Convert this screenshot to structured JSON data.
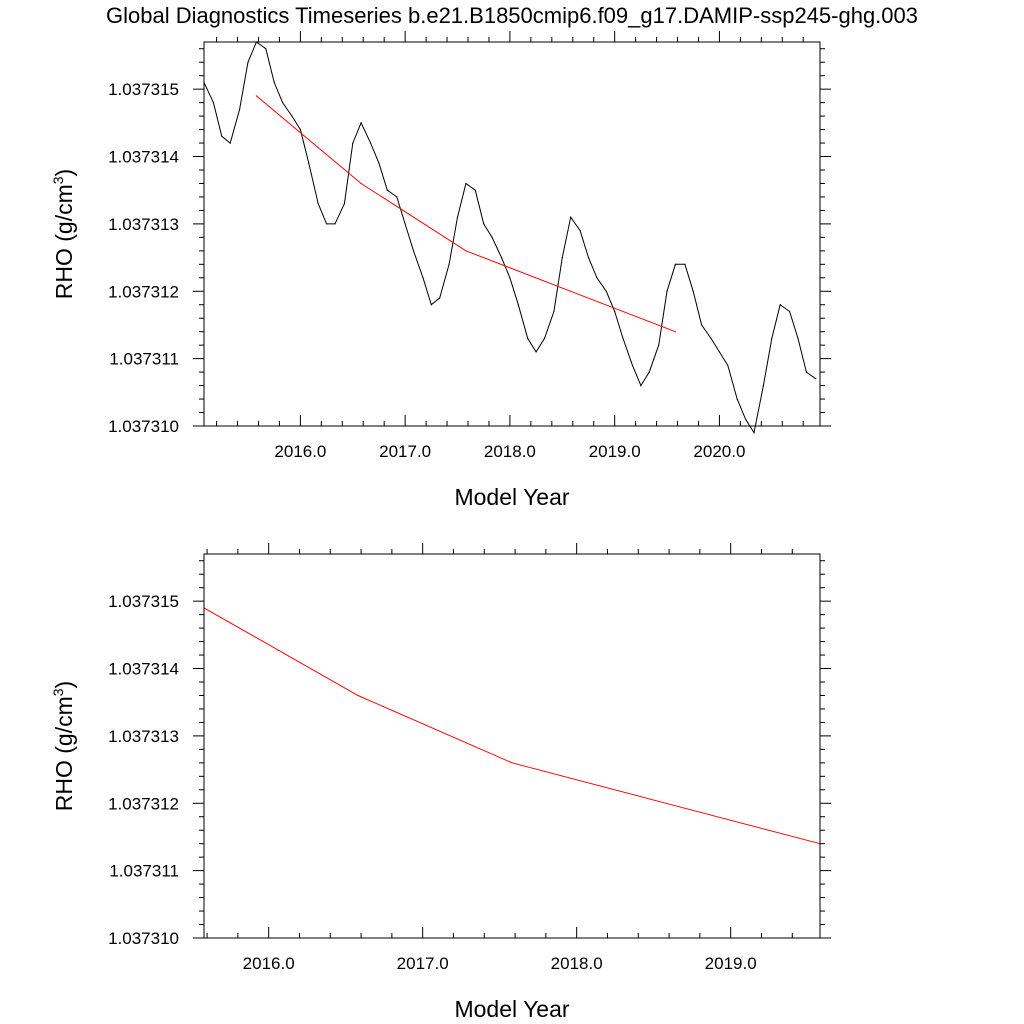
{
  "figure": {
    "title": "Global Diagnostics Timeseries b.e21.B1850cmip6.f09_g17.DAMIP-ssp245-ghg.003"
  },
  "chart_data": [
    {
      "type": "line",
      "xlabel": "Model Year",
      "ylabel": "RHO (g/cm",
      "ylabel_sup": "3",
      "ylabel_tail": ")",
      "xlim": [
        2015.08,
        2020.96
      ],
      "ylim": [
        1.03731,
        1.0373157
      ],
      "xticks": [
        2016.0,
        2017.0,
        2018.0,
        2019.0,
        2020.0
      ],
      "xtick_labels": [
        "2016.0",
        "2017.0",
        "2018.0",
        "2019.0",
        "2020.0"
      ],
      "yticks": [
        1.03731,
        1.037311,
        1.037312,
        1.037313,
        1.037314,
        1.037315
      ],
      "ytick_labels": [
        "1.037310",
        "1.037311",
        "1.037312",
        "1.037313",
        "1.037314",
        "1.037315"
      ],
      "grid": false,
      "series": [
        {
          "color": "#000000",
          "x": [
            2015.08,
            2015.17,
            2015.25,
            2015.33,
            2015.42,
            2015.5,
            2015.58,
            2015.67,
            2015.75,
            2015.83,
            2015.92,
            2016.0,
            2016.08,
            2016.17,
            2016.25,
            2016.33,
            2016.42,
            2016.5,
            2016.58,
            2016.67,
            2016.75,
            2016.83,
            2016.92,
            2017.0,
            2017.08,
            2017.17,
            2017.25,
            2017.33,
            2017.42,
            2017.5,
            2017.58,
            2017.67,
            2017.75,
            2017.83,
            2017.92,
            2018.0,
            2018.08,
            2018.17,
            2018.25,
            2018.33,
            2018.42,
            2018.5,
            2018.58,
            2018.67,
            2018.75,
            2018.83,
            2018.92,
            2019.0,
            2019.08,
            2019.17,
            2019.25,
            2019.33,
            2019.42,
            2019.5,
            2019.58,
            2019.67,
            2019.75,
            2019.83,
            2019.92,
            2020.0,
            2020.08,
            2020.17,
            2020.25,
            2020.33,
            2020.42,
            2020.5,
            2020.58,
            2020.67,
            2020.75,
            2020.83,
            2020.92
          ],
          "y": [
            1.0373151,
            1.0373148,
            1.0373143,
            1.0373142,
            1.0373147,
            1.0373154,
            1.0373157,
            1.0373156,
            1.0373151,
            1.0373148,
            1.0373146,
            1.0373144,
            1.0373139,
            1.0373133,
            1.037313,
            1.037313,
            1.0373133,
            1.0373142,
            1.0373145,
            1.0373142,
            1.0373139,
            1.0373135,
            1.0373134,
            1.037313,
            1.0373126,
            1.0373122,
            1.0373118,
            1.0373119,
            1.0373124,
            1.0373131,
            1.0373136,
            1.0373135,
            1.037313,
            1.0373128,
            1.0373125,
            1.0373122,
            1.0373118,
            1.0373113,
            1.0373111,
            1.0373113,
            1.0373117,
            1.0373125,
            1.0373131,
            1.0373129,
            1.0373125,
            1.0373122,
            1.037312,
            1.0373117,
            1.0373113,
            1.0373109,
            1.0373106,
            1.0373108,
            1.0373112,
            1.037312,
            1.0373124,
            1.0373124,
            1.037312,
            1.0373115,
            1.0373113,
            1.0373111,
            1.0373109,
            1.0373104,
            1.0373101,
            1.0373099,
            1.0373106,
            1.0373113,
            1.0373118,
            1.0373117,
            1.0373113,
            1.0373108,
            1.0373107
          ]
        },
        {
          "color": "#ff0000",
          "x": [
            2015.58,
            2016.58,
            2017.58,
            2018.58,
            2019.58
          ],
          "y": [
            1.0373149,
            1.0373136,
            1.0373126,
            1.037312,
            1.0373114
          ]
        }
      ]
    },
    {
      "type": "line",
      "xlabel": "Model Year",
      "ylabel": "RHO (g/cm",
      "ylabel_sup": "3",
      "ylabel_tail": ")",
      "xlim": [
        2015.58,
        2019.58
      ],
      "ylim": [
        1.03731,
        1.0373157
      ],
      "xticks": [
        2016.0,
        2017.0,
        2018.0,
        2019.0
      ],
      "xtick_labels": [
        "2016.0",
        "2017.0",
        "2018.0",
        "2019.0"
      ],
      "yticks": [
        1.03731,
        1.037311,
        1.037312,
        1.037313,
        1.037314,
        1.037315
      ],
      "ytick_labels": [
        "1.037310",
        "1.037311",
        "1.037312",
        "1.037313",
        "1.037314",
        "1.037315"
      ],
      "grid": false,
      "series": [
        {
          "color": "#ff0000",
          "x": [
            2015.58,
            2016.58,
            2017.58,
            2018.58,
            2019.58
          ],
          "y": [
            1.0373149,
            1.0373136,
            1.0373126,
            1.037312,
            1.0373114
          ]
        }
      ]
    }
  ]
}
